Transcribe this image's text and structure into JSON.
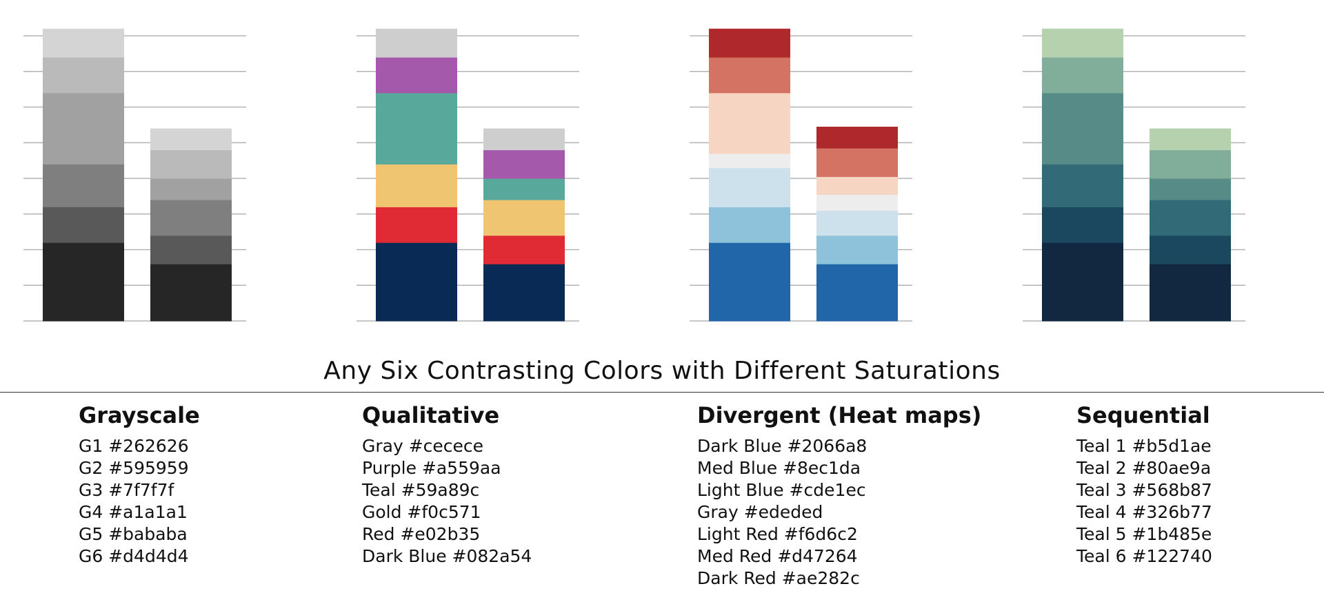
{
  "title": "Any Six Contrasting Colors with Different Saturations",
  "chart_data": [
    {
      "type": "bar",
      "stacked": true,
      "grid": true,
      "ylim": [
        0,
        8
      ],
      "categories": [
        "",
        ""
      ],
      "series": [
        {
          "color": "#262626",
          "values": [
            2.2,
            1.6
          ]
        },
        {
          "color": "#595959",
          "values": [
            1.0,
            0.8
          ]
        },
        {
          "color": "#7f7f7f",
          "values": [
            1.2,
            1.0
          ]
        },
        {
          "color": "#a1a1a1",
          "values": [
            2.0,
            0.6
          ]
        },
        {
          "color": "#bababa",
          "values": [
            1.0,
            0.8
          ]
        },
        {
          "color": "#d4d4d4",
          "values": [
            0.8,
            0.6
          ]
        }
      ]
    },
    {
      "type": "bar",
      "stacked": true,
      "grid": true,
      "ylim": [
        0,
        8
      ],
      "categories": [
        "",
        ""
      ],
      "series": [
        {
          "color": "#082a54",
          "values": [
            2.2,
            1.6
          ]
        },
        {
          "color": "#e02b35",
          "values": [
            1.0,
            0.8
          ]
        },
        {
          "color": "#f0c571",
          "values": [
            1.2,
            1.0
          ]
        },
        {
          "color": "#59a89c",
          "values": [
            2.0,
            0.6
          ]
        },
        {
          "color": "#a559aa",
          "values": [
            1.0,
            0.8
          ]
        },
        {
          "color": "#cecece",
          "values": [
            0.8,
            0.6
          ]
        }
      ]
    },
    {
      "type": "bar",
      "stacked": true,
      "grid": true,
      "ylim": [
        0,
        8
      ],
      "categories": [
        "",
        ""
      ],
      "series": [
        {
          "color": "#2066a8",
          "values": [
            2.2,
            1.6
          ]
        },
        {
          "color": "#8ec1da",
          "values": [
            1.0,
            0.8
          ]
        },
        {
          "color": "#cde1ec",
          "values": [
            1.1,
            0.7
          ]
        },
        {
          "color": "#ededed",
          "values": [
            0.4,
            0.45
          ]
        },
        {
          "color": "#f6d6c2",
          "values": [
            1.7,
            0.5
          ]
        },
        {
          "color": "#d47264",
          "values": [
            1.0,
            0.8
          ]
        },
        {
          "color": "#ae282c",
          "values": [
            0.8,
            0.6
          ]
        }
      ]
    },
    {
      "type": "bar",
      "stacked": true,
      "grid": true,
      "ylim": [
        0,
        8
      ],
      "categories": [
        "",
        ""
      ],
      "series": [
        {
          "color": "#122740",
          "values": [
            2.2,
            1.6
          ]
        },
        {
          "color": "#1b485e",
          "values": [
            1.0,
            0.8
          ]
        },
        {
          "color": "#326b77",
          "values": [
            1.2,
            1.0
          ]
        },
        {
          "color": "#568b87",
          "values": [
            2.0,
            0.6
          ]
        },
        {
          "color": "#80ae9a",
          "values": [
            1.0,
            0.8
          ]
        },
        {
          "color": "#b5d1ae",
          "values": [
            0.8,
            0.6
          ]
        }
      ]
    }
  ],
  "legends": [
    {
      "heading": "Grayscale",
      "items": [
        "G1 #262626",
        "G2 #595959",
        "G3 #7f7f7f",
        "G4 #a1a1a1",
        "G5 #bababa",
        "G6 #d4d4d4"
      ]
    },
    {
      "heading": "Qualitative",
      "items": [
        "Gray #cecece",
        "Purple #a559aa",
        "Teal #59a89c",
        "Gold #f0c571",
        "Red #e02b35",
        "Dark Blue #082a54"
      ]
    },
    {
      "heading": "Divergent (Heat maps)",
      "items": [
        "Dark Blue #2066a8",
        "Med Blue #8ec1da",
        "Light Blue #cde1ec",
        "Gray #ededed",
        "Light Red #f6d6c2",
        "Med Red #d47264",
        "Dark Red #ae282c"
      ]
    },
    {
      "heading": "Sequential",
      "items": [
        "Teal 1 #b5d1ae",
        "Teal 2 #80ae9a",
        "Teal 3 #568b87",
        "Teal 4 #326b77",
        "Teal 5 #1b485e",
        "Teal 6 #122740"
      ]
    }
  ]
}
